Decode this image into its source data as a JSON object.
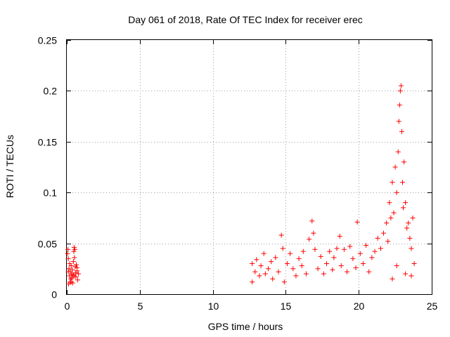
{
  "chart_data": {
    "type": "scatter",
    "title": "Day 061 of 2018, Rate Of TEC Index for receiver erec",
    "xlabel": "GPS time / hours",
    "ylabel": "ROTI / TECUs",
    "xlim": [
      0,
      25
    ],
    "ylim": [
      0,
      0.25
    ],
    "xticks": [
      0,
      5,
      10,
      15,
      20,
      25
    ],
    "yticks": [
      0,
      0.05,
      0.1,
      0.15,
      0.2,
      0.25
    ],
    "x_tick_labels": [
      "0",
      "5",
      "10",
      "15",
      "20",
      "25"
    ],
    "y_tick_labels": [
      "0",
      "0.05",
      "0.1",
      "0.15",
      "0.2",
      "0.25"
    ],
    "grid": true,
    "legend": "none",
    "marker": "+",
    "series": [
      {
        "color": "#ff0000",
        "points": [
          [
            0.05,
            0.04
          ],
          [
            0.08,
            0.044
          ],
          [
            0.1,
            0.035
          ],
          [
            0.12,
            0.01
          ],
          [
            0.15,
            0.025
          ],
          [
            0.18,
            0.018
          ],
          [
            0.2,
            0.03
          ],
          [
            0.22,
            0.012
          ],
          [
            0.25,
            0.022
          ],
          [
            0.28,
            0.015
          ],
          [
            0.3,
            0.028
          ],
          [
            0.32,
            0.02
          ],
          [
            0.35,
            0.016
          ],
          [
            0.38,
            0.024
          ],
          [
            0.4,
            0.011
          ],
          [
            0.42,
            0.019
          ],
          [
            0.45,
            0.032
          ],
          [
            0.48,
            0.042
          ],
          [
            0.5,
            0.046
          ],
          [
            0.52,
            0.036
          ],
          [
            0.55,
            0.044
          ],
          [
            0.58,
            0.027
          ],
          [
            0.6,
            0.021
          ],
          [
            0.62,
            0.017
          ],
          [
            0.65,
            0.029
          ],
          [
            0.7,
            0.023
          ],
          [
            0.75,
            0.014
          ],
          [
            0.8,
            0.02
          ],
          [
            0.1,
            0.022
          ],
          [
            0.3,
            0.012
          ],
          [
            0.5,
            0.018
          ],
          [
            0.7,
            0.026
          ],
          [
            12.7,
            0.03
          ],
          [
            12.7,
            0.012
          ],
          [
            12.9,
            0.022
          ],
          [
            13.0,
            0.034
          ],
          [
            13.2,
            0.018
          ],
          [
            13.3,
            0.028
          ],
          [
            13.5,
            0.04
          ],
          [
            13.6,
            0.02
          ],
          [
            13.8,
            0.025
          ],
          [
            14.0,
            0.032
          ],
          [
            14.1,
            0.015
          ],
          [
            14.3,
            0.036
          ],
          [
            14.5,
            0.022
          ],
          [
            14.7,
            0.058
          ],
          [
            14.8,
            0.045
          ],
          [
            14.9,
            0.012
          ],
          [
            15.1,
            0.03
          ],
          [
            15.3,
            0.04
          ],
          [
            15.5,
            0.025
          ],
          [
            15.7,
            0.018
          ],
          [
            15.9,
            0.035
          ],
          [
            16.1,
            0.028
          ],
          [
            16.2,
            0.042
          ],
          [
            16.4,
            0.02
          ],
          [
            16.6,
            0.054
          ],
          [
            16.8,
            0.072
          ],
          [
            16.9,
            0.06
          ],
          [
            17.0,
            0.044
          ],
          [
            17.2,
            0.025
          ],
          [
            17.4,
            0.037
          ],
          [
            17.6,
            0.02
          ],
          [
            17.8,
            0.03
          ],
          [
            18.0,
            0.042
          ],
          [
            18.2,
            0.024
          ],
          [
            18.3,
            0.036
          ],
          [
            18.5,
            0.045
          ],
          [
            18.7,
            0.057
          ],
          [
            18.8,
            0.028
          ],
          [
            19.0,
            0.044
          ],
          [
            19.2,
            0.022
          ],
          [
            19.4,
            0.047
          ],
          [
            19.6,
            0.035
          ],
          [
            19.8,
            0.026
          ],
          [
            19.9,
            0.071
          ],
          [
            20.1,
            0.04
          ],
          [
            20.3,
            0.03
          ],
          [
            20.5,
            0.048
          ],
          [
            20.7,
            0.022
          ],
          [
            20.9,
            0.036
          ],
          [
            21.1,
            0.042
          ],
          [
            21.3,
            0.055
          ],
          [
            21.5,
            0.045
          ],
          [
            21.7,
            0.06
          ],
          [
            21.9,
            0.07
          ],
          [
            22.0,
            0.052
          ],
          [
            22.1,
            0.09
          ],
          [
            22.2,
            0.075
          ],
          [
            22.3,
            0.11
          ],
          [
            22.4,
            0.08
          ],
          [
            22.5,
            0.125
          ],
          [
            22.6,
            0.1
          ],
          [
            22.7,
            0.14
          ],
          [
            22.75,
            0.17
          ],
          [
            22.8,
            0.186
          ],
          [
            22.85,
            0.2
          ],
          [
            22.9,
            0.205
          ],
          [
            22.95,
            0.16
          ],
          [
            23.0,
            0.11
          ],
          [
            23.05,
            0.085
          ],
          [
            23.1,
            0.13
          ],
          [
            23.2,
            0.09
          ],
          [
            23.3,
            0.065
          ],
          [
            23.4,
            0.07
          ],
          [
            23.5,
            0.055
          ],
          [
            23.6,
            0.045
          ],
          [
            23.7,
            0.075
          ],
          [
            23.8,
            0.03
          ],
          [
            22.3,
            0.015
          ],
          [
            22.6,
            0.028
          ],
          [
            23.2,
            0.02
          ],
          [
            23.6,
            0.018
          ]
        ]
      }
    ]
  }
}
